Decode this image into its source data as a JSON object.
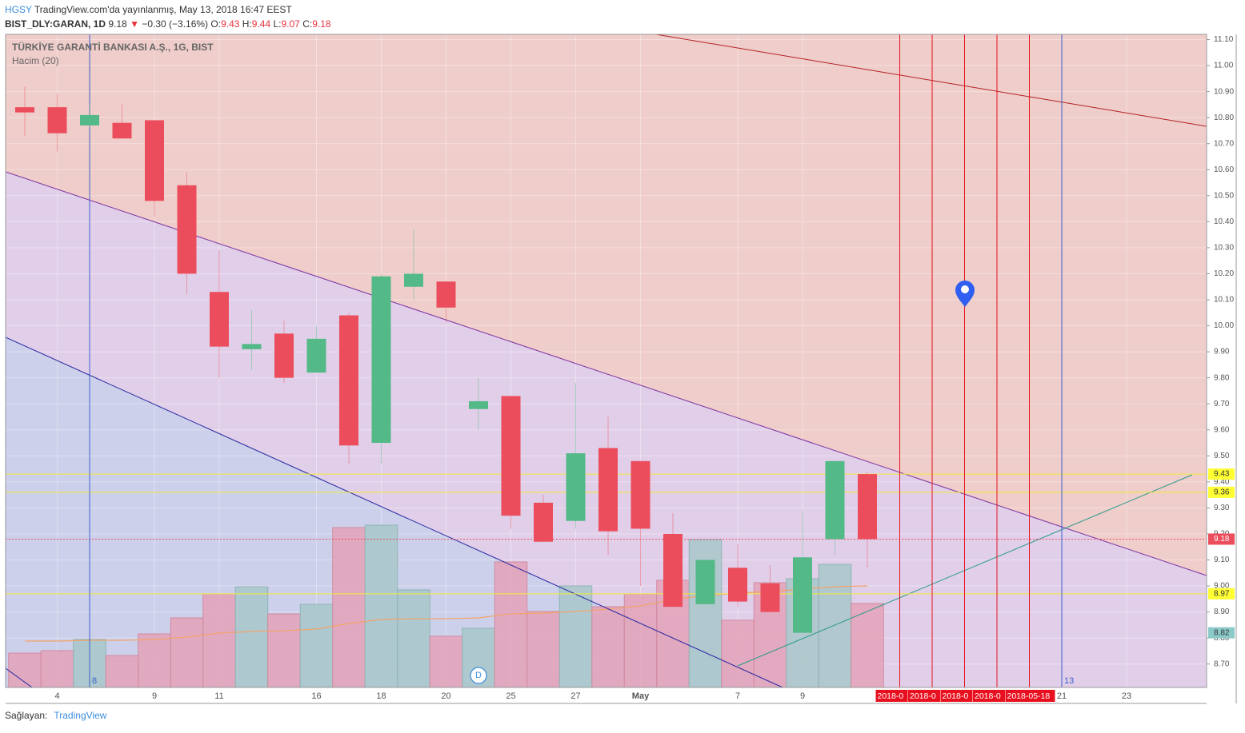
{
  "header": {
    "brand": "HGSY",
    "published": "TradingView.com'da yayınlanmış, May 13, 2018 16:47 EEST",
    "symbol": "BIST_DLY:GARAN, 1D",
    "last": 9.18,
    "arrow": "▼",
    "change": "−0.30 (−3.16%)",
    "o_label": "O:",
    "open": 9.43,
    "h_label": "H:",
    "high": 9.44,
    "l_label": "L:",
    "low": 9.07,
    "c_label": "C:",
    "close": 9.18
  },
  "footer": {
    "provider": "Sağlayan:",
    "brand": "TradingView"
  },
  "chart_data": {
    "type": "candlestick",
    "title": "TÜRKİYE GARANTİ BANKASI A.Ş., 1G, BIST",
    "subtitle": "Hacim (20)",
    "categories": [
      null,
      "4",
      null,
      null,
      "9",
      null,
      "11",
      null,
      null,
      "16",
      null,
      "18",
      null,
      "20",
      null,
      "25",
      null,
      "27",
      null,
      "May",
      null,
      null,
      "7",
      null,
      "9",
      null,
      null,
      null,
      null,
      null,
      null,
      null,
      "21",
      null,
      "23",
      null,
      null
    ],
    "open": [
      10.84,
      10.84,
      10.77,
      10.78,
      10.79,
      10.54,
      10.13,
      9.91,
      9.97,
      9.82,
      10.04,
      9.55,
      10.15,
      10.17,
      9.68,
      9.73,
      9.32,
      9.25,
      9.53,
      9.48,
      9.2,
      8.93,
      9.07,
      9.01,
      8.82,
      9.18,
      9.43,
      null,
      null,
      null,
      null,
      null,
      null,
      null,
      null,
      null,
      null
    ],
    "high": [
      10.92,
      10.89,
      10.85,
      10.85,
      10.79,
      10.59,
      10.29,
      10.06,
      10.02,
      10.0,
      10.05,
      10.2,
      10.37,
      10.17,
      9.8,
      9.73,
      9.35,
      9.78,
      9.65,
      9.48,
      9.28,
      9.1,
      9.16,
      9.08,
      9.29,
      9.48,
      9.44,
      null,
      null,
      null,
      null,
      null,
      null,
      null,
      null,
      null,
      null
    ],
    "low": [
      10.73,
      10.67,
      10.76,
      10.72,
      10.42,
      10.12,
      9.8,
      9.83,
      9.78,
      9.82,
      9.47,
      9.47,
      10.1,
      10.01,
      9.6,
      9.22,
      9.17,
      9.22,
      9.12,
      9.0,
      8.92,
      8.93,
      8.92,
      8.9,
      8.82,
      9.12,
      9.07,
      null,
      null,
      null,
      null,
      null,
      null,
      null,
      null,
      null,
      null
    ],
    "close": [
      10.82,
      10.74,
      10.81,
      10.72,
      10.48,
      10.2,
      9.92,
      9.93,
      9.8,
      9.95,
      9.54,
      10.19,
      10.2,
      10.07,
      9.71,
      9.27,
      9.17,
      9.51,
      9.21,
      9.22,
      8.92,
      9.1,
      8.94,
      8.9,
      9.11,
      9.48,
      9.18,
      null,
      null,
      null,
      null,
      null,
      null,
      null,
      null,
      null,
      null
    ],
    "volume": [
      43,
      46,
      60,
      40,
      67,
      87,
      117,
      126,
      92,
      104,
      200,
      203,
      122,
      64,
      74,
      157,
      95,
      127,
      101,
      117,
      134,
      185,
      84,
      131,
      136,
      154,
      105,
      null,
      null,
      null,
      null,
      null,
      null,
      null,
      null,
      null,
      null
    ],
    "volume_ma": [
      58,
      58,
      59,
      59,
      60,
      63,
      68,
      70,
      71,
      73,
      80,
      85,
      86,
      86,
      87,
      92,
      93,
      95,
      98,
      102,
      110,
      115,
      118,
      120,
      123,
      126,
      127,
      null,
      null,
      null,
      null,
      null,
      null,
      null,
      null,
      null,
      null
    ],
    "up_color": "#53b987",
    "down_color": "#eb4d5c",
    "volume_up_color": "#a7c7c9",
    "volume_down_color": "#e3a2b8",
    "ma_color": "#f3a46b",
    "ylim": [
      8.61,
      11.12
    ],
    "yticks": [
      {
        "value": 11.1,
        "label": "11.10"
      },
      {
        "value": 11.0,
        "label": "11.00"
      },
      {
        "value": 10.9,
        "label": "10.90"
      },
      {
        "value": 10.8,
        "label": "10.80"
      },
      {
        "value": 10.7,
        "label": "10.70"
      },
      {
        "value": 10.6,
        "label": "10.60"
      },
      {
        "value": 10.5,
        "label": "10.50"
      },
      {
        "value": 10.4,
        "label": "10.40"
      },
      {
        "value": 10.3,
        "label": "10.30"
      },
      {
        "value": 10.2,
        "label": "10.20"
      },
      {
        "value": 10.1,
        "label": "10.10"
      },
      {
        "value": 10.0,
        "label": "10.00"
      },
      {
        "value": 9.9,
        "label": "9.90"
      },
      {
        "value": 9.8,
        "label": "9.80"
      },
      {
        "value": 9.7,
        "label": "9.70"
      },
      {
        "value": 9.6,
        "label": "9.60"
      },
      {
        "value": 9.5,
        "label": "9.50"
      },
      {
        "value": 9.4,
        "label": "9.40"
      },
      {
        "value": 9.3,
        "label": "9.30"
      },
      {
        "value": 9.2,
        "label": "9.20"
      },
      {
        "value": 9.1,
        "label": "9.10"
      },
      {
        "value": 9.0,
        "label": "9.00"
      },
      {
        "value": 8.9,
        "label": "8.90"
      },
      {
        "value": 8.8,
        "label": "8.80"
      },
      {
        "value": 8.7,
        "label": "8.70"
      }
    ],
    "price_labels": [
      {
        "value": 9.43,
        "color": "#ffff33",
        "text_color": "#333",
        "line": "solid"
      },
      {
        "value": 9.36,
        "color": "#ffff33",
        "text_color": "#333",
        "line": "solid"
      },
      {
        "value": 9.18,
        "color": "#eb4d5c",
        "text_color": "#fff",
        "line": "dotted"
      },
      {
        "value": 8.97,
        "color": "#ffff33",
        "text_color": "#333",
        "line": "solid"
      },
      {
        "value": 8.82,
        "color": "#8cc9c9",
        "text_color": "#333",
        "line": null
      }
    ],
    "vertical_markers": [
      {
        "label": "8",
        "color": "#3b5fc9"
      },
      {
        "label": "13",
        "color": "#3b5fc9"
      },
      {
        "label": "2018-0",
        "color": "#e8101e"
      },
      {
        "label": "2018-0",
        "color": "#e8101e"
      },
      {
        "label": "2018-0",
        "color": "#e8101e"
      },
      {
        "label": "2018-0",
        "color": "#e8101e"
      },
      {
        "label": "2018-05-18",
        "color": "#e8101e"
      }
    ],
    "event_label": "D"
  }
}
